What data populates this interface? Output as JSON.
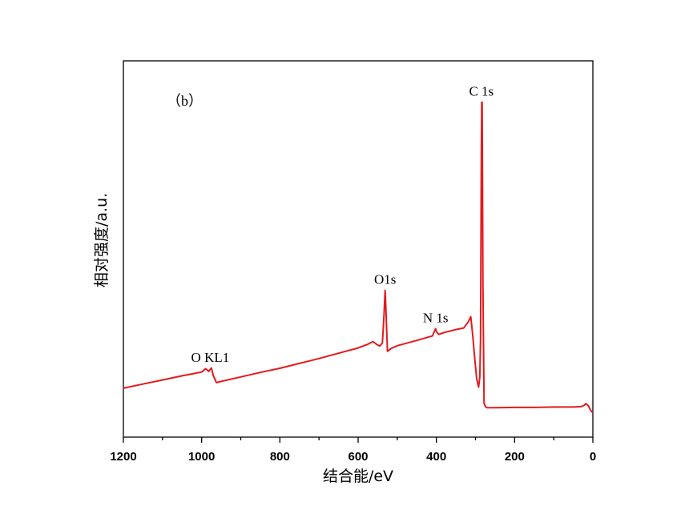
{
  "chart_data": {
    "type": "line",
    "panel_label": "（b）",
    "xlabel": "结合能/eV",
    "ylabel": "相对强度/a.u.",
    "xlim": [
      1200,
      0
    ],
    "ylim": [
      0,
      100
    ],
    "x_reversed": true,
    "x_ticks": [
      1200,
      1000,
      800,
      600,
      400,
      200,
      0
    ],
    "y_ticks_shown": false,
    "grid": false,
    "legend": "none",
    "series": [
      {
        "color": "#e31a1c",
        "x": [
          1200,
          1150,
          1100,
          1050,
          1020,
          1000,
          990,
          982,
          975,
          970,
          962,
          950,
          900,
          850,
          800,
          750,
          700,
          650,
          600,
          575,
          562,
          552,
          545,
          538,
          534,
          531,
          529,
          525,
          515,
          500,
          450,
          410,
          405,
          402,
          399,
          394,
          380,
          350,
          330,
          318,
          312,
          307,
          302,
          297,
          292,
          289,
          287,
          285,
          284,
          283,
          281,
          278,
          274,
          270,
          250,
          200,
          150,
          100,
          50,
          30,
          22,
          18,
          12,
          8,
          5,
          0
        ],
        "y": [
          13.0,
          14.1,
          15.2,
          16.3,
          16.9,
          17.3,
          18.2,
          17.5,
          18.4,
          16.3,
          14.5,
          14.8,
          16.0,
          17.2,
          18.3,
          19.6,
          20.9,
          22.3,
          23.7,
          24.7,
          25.4,
          24.6,
          24.2,
          25.0,
          32.0,
          39.0,
          34.0,
          22.8,
          23.6,
          24.3,
          25.7,
          26.9,
          28.1,
          28.8,
          27.9,
          27.3,
          27.8,
          28.6,
          29.0,
          30.7,
          32.0,
          27.0,
          21.0,
          15.5,
          13.3,
          16.0,
          26.0,
          75.0,
          89.0,
          89.0,
          40.0,
          9.0,
          8.0,
          7.8,
          7.8,
          7.9,
          7.9,
          8.0,
          8.0,
          8.1,
          8.5,
          8.9,
          8.4,
          7.6,
          7.0,
          6.5
        ]
      }
    ],
    "annotations": [
      {
        "text": "C 1s",
        "x": 285,
        "y": 89
      },
      {
        "text": "O1s",
        "x": 531,
        "y": 39
      },
      {
        "text": "N 1s",
        "x": 402,
        "y": 28.8
      },
      {
        "text": "O KL1",
        "x": 978,
        "y": 18.3
      }
    ]
  }
}
